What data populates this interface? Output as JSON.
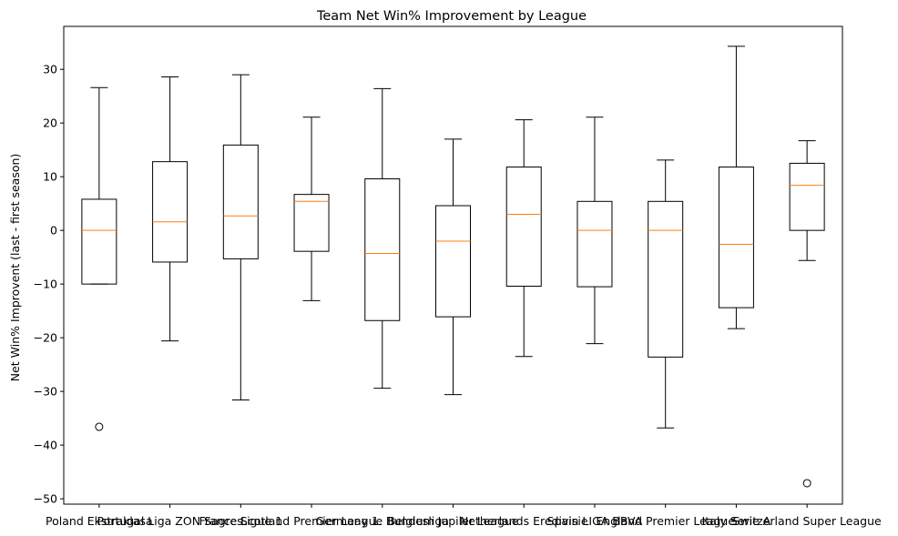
{
  "chart_data": {
    "type": "box",
    "title": "Team Net Win% Improvement by League",
    "xlabel": "",
    "ylabel": "Net Win% Improvent (last - first season)",
    "ylim": [
      -51,
      38
    ],
    "yticks": [
      -50,
      -40,
      -30,
      -20,
      -10,
      0,
      10,
      20,
      30
    ],
    "grid": false,
    "categories": [
      "Poland Ekstraklasa",
      "Portugal Liga ZON Sagres",
      "France Ligue 1",
      "Scotland Premier League",
      "Germany 1. Bundesliga",
      "Belgium Jupiler League",
      "Netherlands Eredivisie",
      "Spain LIGA BBVA",
      "England Premier League",
      "Italy Serie A",
      "Switzerland Super League"
    ],
    "boxes": [
      {
        "whisker_low": -10.0,
        "q1": -10.0,
        "median": 0.0,
        "q3": 5.8,
        "whisker_high": 26.6,
        "outliers": [
          -36.6
        ]
      },
      {
        "whisker_low": -20.6,
        "q1": -5.9,
        "median": 1.6,
        "q3": 12.8,
        "whisker_high": 28.6,
        "outliers": []
      },
      {
        "whisker_low": -31.6,
        "q1": -5.3,
        "median": 2.7,
        "q3": 15.9,
        "whisker_high": 29.0,
        "outliers": []
      },
      {
        "whisker_low": -13.1,
        "q1": -3.9,
        "median": 5.4,
        "q3": 6.7,
        "whisker_high": 21.1,
        "outliers": []
      },
      {
        "whisker_low": -29.4,
        "q1": -16.8,
        "median": -4.3,
        "q3": 9.6,
        "whisker_high": 26.4,
        "outliers": []
      },
      {
        "whisker_low": -30.6,
        "q1": -16.1,
        "median": -2.0,
        "q3": 4.6,
        "whisker_high": 17.0,
        "outliers": []
      },
      {
        "whisker_low": -23.5,
        "q1": -10.4,
        "median": 3.0,
        "q3": 11.8,
        "whisker_high": 20.6,
        "outliers": []
      },
      {
        "whisker_low": -21.1,
        "q1": -10.5,
        "median": 0.0,
        "q3": 5.4,
        "whisker_high": 21.1,
        "outliers": []
      },
      {
        "whisker_low": -36.8,
        "q1": -23.6,
        "median": 0.0,
        "q3": 5.4,
        "whisker_high": 13.1,
        "outliers": []
      },
      {
        "whisker_low": -18.3,
        "q1": -14.4,
        "median": -2.6,
        "q3": 11.8,
        "whisker_high": 34.3,
        "outliers": []
      },
      {
        "whisker_low": -5.6,
        "q1": 0.0,
        "median": 8.4,
        "q3": 12.5,
        "whisker_high": 16.7,
        "outliers": [
          -47.1
        ]
      }
    ],
    "colors": {
      "box": "#000000",
      "median": "#ff7f0e",
      "axis": "#000000"
    }
  }
}
